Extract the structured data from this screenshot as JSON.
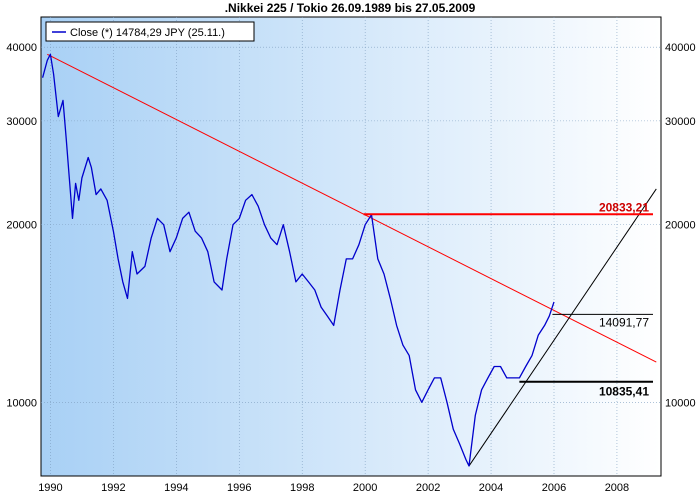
{
  "title": ".Nikkei 225 / Tokio 26.09.1989 bis 27.05.2009",
  "legend": {
    "label": "Close (*) 14784,29 JPY (25.11.)"
  },
  "colors": {
    "price_line": "#0000cc",
    "resistance_line": "#ff0000",
    "support_line": "#000000",
    "bg_left": "#a8d0f5",
    "bg_right": "#ffffff",
    "marker_red": "#cc0000"
  },
  "chart_data": {
    "type": "line",
    "title": ".Nikkei 225 / Tokio 26.09.1989 bis 27.05.2009",
    "xlabel": "",
    "ylabel": "",
    "y_scale": "log",
    "x_range": [
      1989.7,
      2009.4
    ],
    "y_range": [
      7500,
      45000
    ],
    "x_ticks": [
      "1990",
      "1992",
      "1994",
      "1996",
      "1998",
      "2000",
      "2002",
      "2004",
      "2006",
      "2008"
    ],
    "y_ticks": [
      "10000",
      "20000",
      "30000",
      "40000"
    ],
    "grid": true,
    "legend_position": "top-left",
    "series": [
      {
        "name": "Close (*) 14784,29 JPY (25.11.)",
        "x": [
          1989.75,
          1989.9,
          1990.0,
          1990.1,
          1990.25,
          1990.4,
          1990.5,
          1990.6,
          1990.7,
          1990.8,
          1990.9,
          1991.0,
          1991.2,
          1991.3,
          1991.45,
          1991.6,
          1991.8,
          1992.0,
          1992.15,
          1992.3,
          1992.45,
          1992.6,
          1992.75,
          1993.0,
          1993.2,
          1993.4,
          1993.6,
          1993.8,
          1994.0,
          1994.2,
          1994.4,
          1994.6,
          1994.8,
          1995.0,
          1995.2,
          1995.45,
          1995.6,
          1995.8,
          1996.0,
          1996.2,
          1996.4,
          1996.6,
          1996.8,
          1997.0,
          1997.2,
          1997.4,
          1997.6,
          1997.8,
          1998.0,
          1998.2,
          1998.4,
          1998.6,
          1998.8,
          1999.0,
          1999.2,
          1999.4,
          1999.6,
          1999.8,
          2000.0,
          2000.2,
          2000.4,
          2000.6,
          2000.8,
          2001.0,
          2001.2,
          2001.4,
          2001.6,
          2001.8,
          2002.0,
          2002.2,
          2002.4,
          2002.6,
          2002.8,
          2003.0,
          2003.2,
          2003.3,
          2003.5,
          2003.7,
          2003.9,
          2004.1,
          2004.3,
          2004.5,
          2004.7,
          2004.9,
          2005.1,
          2005.3,
          2005.5,
          2005.7,
          2005.85,
          2006.0
        ],
        "values": [
          35500,
          38000,
          38900,
          36000,
          30500,
          32500,
          28000,
          24000,
          20500,
          23500,
          22000,
          24000,
          26000,
          25000,
          22500,
          23000,
          22000,
          19500,
          17500,
          16000,
          15000,
          18000,
          16500,
          17000,
          19000,
          20500,
          20000,
          18000,
          19000,
          20500,
          21000,
          19500,
          19000,
          18000,
          16000,
          15500,
          17500,
          20000,
          20500,
          22000,
          22500,
          21500,
          20000,
          19000,
          18500,
          20000,
          18000,
          16000,
          16500,
          16000,
          15500,
          14500,
          14000,
          13500,
          15500,
          17500,
          17500,
          18500,
          20000,
          20800,
          17500,
          16500,
          15000,
          13500,
          12500,
          12000,
          10500,
          10000,
          10500,
          11000,
          11000,
          10000,
          9000,
          8500,
          8000,
          7800,
          9500,
          10500,
          11000,
          11500,
          11500,
          11000,
          11000,
          11000,
          11500,
          12000,
          13000,
          13500,
          14000,
          14800
        ]
      }
    ],
    "annotations": [
      {
        "label": "20833,21",
        "value": 20833.21
      },
      {
        "label": "14091,77",
        "value": 14091.77
      },
      {
        "label": "10835,41",
        "value": 10835.41
      }
    ]
  }
}
